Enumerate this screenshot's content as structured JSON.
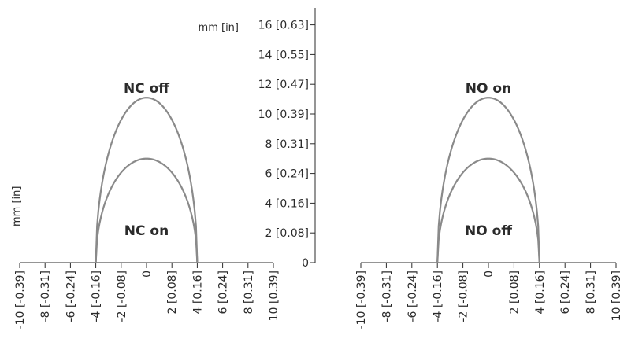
{
  "chart_data": {
    "type": "line",
    "colors": {
      "curve": "#8a8a8a",
      "axis": "#2b2b2b",
      "text": "#2b2b2b"
    },
    "y_axis": {
      "unit_label": "mm [in]",
      "ylim": [
        0,
        16
      ],
      "ticks": [
        {
          "value": 0,
          "label": "0"
        },
        {
          "value": 2,
          "label": "2 [0.08]"
        },
        {
          "value": 4,
          "label": "4 [0.16]"
        },
        {
          "value": 6,
          "label": "6 [0.24]"
        },
        {
          "value": 8,
          "label": "8 [0.31]"
        },
        {
          "value": 10,
          "label": "10 [0.39]"
        },
        {
          "value": 12,
          "label": "12 [0.47]"
        },
        {
          "value": 14,
          "label": "14 [0.55]"
        },
        {
          "value": 16,
          "label": "16 [0.63]"
        }
      ]
    },
    "x_unit_label": "mm [in]",
    "xlim": [
      -10,
      10
    ],
    "x_ticks": [
      {
        "value": -10,
        "label": "-10 [-0.39]"
      },
      {
        "value": -8,
        "label": "-8 [-0.31]"
      },
      {
        "value": -6,
        "label": "-6 [-0.24]"
      },
      {
        "value": -4,
        "label": "-4 [-0.16]"
      },
      {
        "value": -2,
        "label": "-2 [-0.08]"
      },
      {
        "value": 0,
        "label": "0"
      },
      {
        "value": 2,
        "label": "2 [0.08]"
      },
      {
        "value": 4,
        "label": "4 [0.16]"
      },
      {
        "value": 6,
        "label": "6 [0.24]"
      },
      {
        "value": 8,
        "label": "8 [0.31]"
      },
      {
        "value": 10,
        "label": "10 [0.39]"
      }
    ],
    "panels": [
      {
        "id": "nc",
        "curves": [
          {
            "label": "NC off",
            "x": [
              -4,
              -3,
              -2,
              -1,
              0,
              1,
              2,
              3,
              4
            ],
            "y": [
              0,
              7.3,
              9.7,
              10.8,
              11.1,
              10.8,
              9.7,
              7.3,
              0
            ]
          },
          {
            "label": "NC on",
            "x": [
              -4,
              -3,
              -2,
              -1,
              0,
              1,
              2,
              3,
              4
            ],
            "y": [
              0,
              4.6,
              6.1,
              6.8,
              7.0,
              6.8,
              6.1,
              4.6,
              0
            ]
          }
        ]
      },
      {
        "id": "no",
        "curves": [
          {
            "label": "NO on",
            "x": [
              -4,
              -3,
              -2,
              -1,
              0,
              1,
              2,
              3,
              4
            ],
            "y": [
              0,
              7.3,
              9.7,
              10.8,
              11.1,
              10.8,
              9.7,
              7.3,
              0
            ]
          },
          {
            "label": "NO off",
            "x": [
              -4,
              -3,
              -2,
              -1,
              0,
              1,
              2,
              3,
              4
            ],
            "y": [
              0,
              4.6,
              6.1,
              6.8,
              7.0,
              6.8,
              6.1,
              4.6,
              0
            ]
          }
        ]
      }
    ]
  }
}
